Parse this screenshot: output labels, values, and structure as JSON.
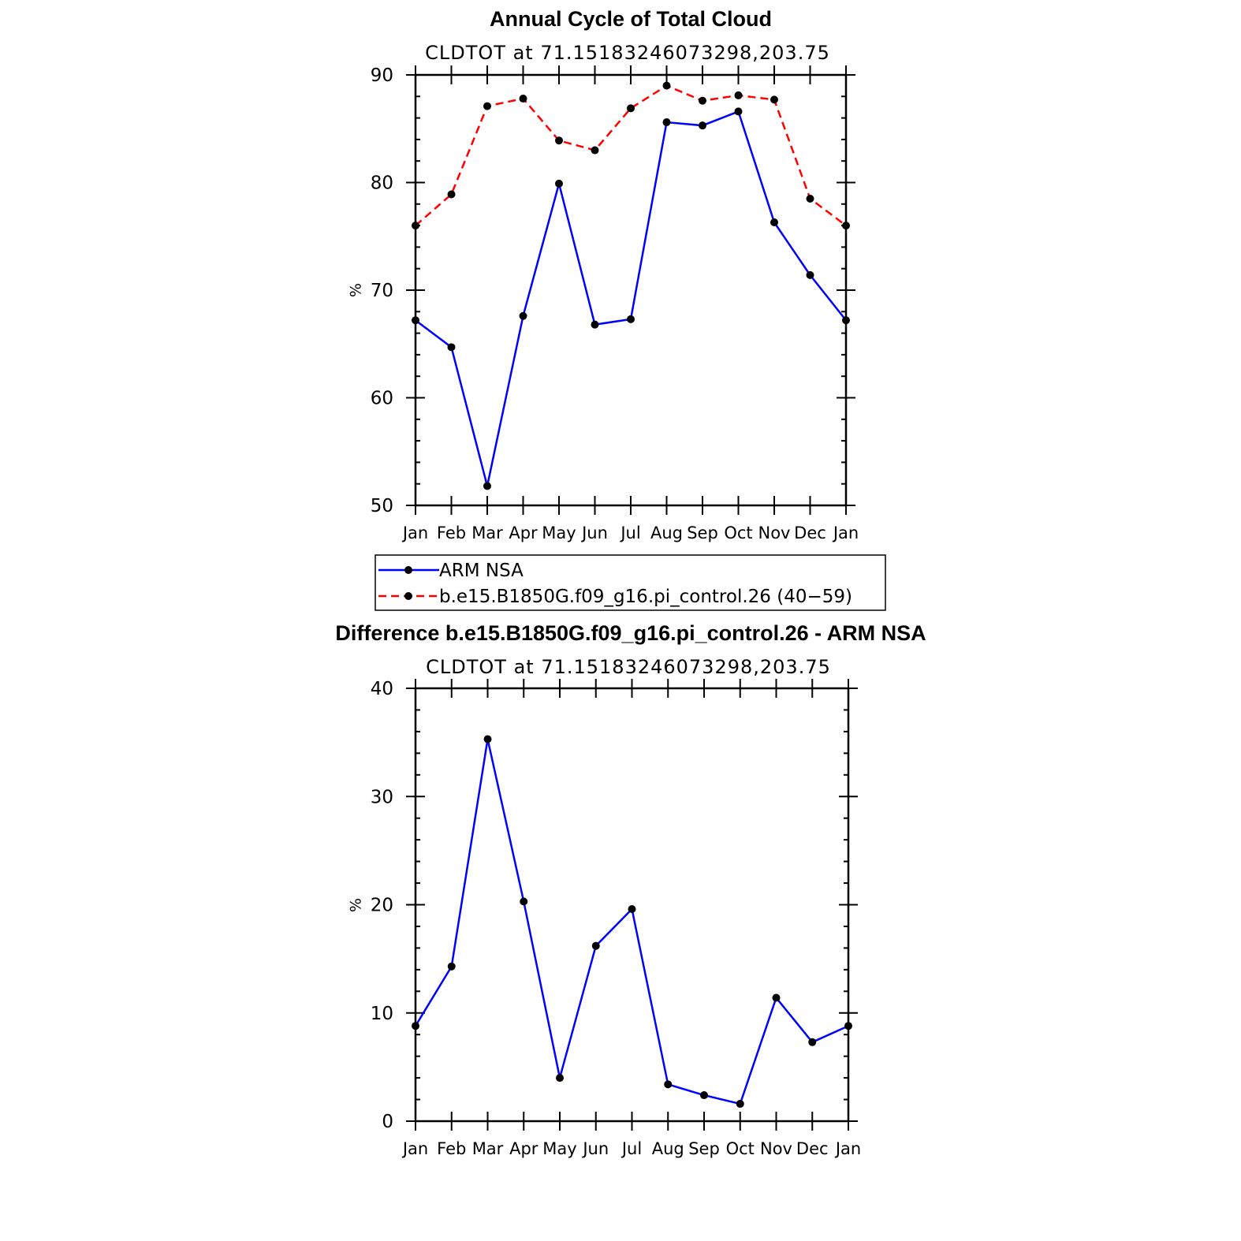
{
  "chart_data": [
    {
      "type": "line",
      "title": "Annual Cycle of Total Cloud",
      "subtitle": "CLDTOT at 71.15183246073298,203.75",
      "xlabel": "",
      "ylabel": "%",
      "categories": [
        "Jan",
        "Feb",
        "Mar",
        "Apr",
        "May",
        "Jun",
        "Jul",
        "Aug",
        "Sep",
        "Oct",
        "Nov",
        "Dec",
        "Jan"
      ],
      "ylim": [
        50,
        90
      ],
      "yticks": [
        50,
        60,
        70,
        80,
        90
      ],
      "grid": false,
      "series": [
        {
          "name": "ARM NSA",
          "color": "#0000ff",
          "dash": "solid",
          "values": [
            67.2,
            64.7,
            51.8,
            67.6,
            79.9,
            66.8,
            67.3,
            85.6,
            85.3,
            86.6,
            76.3,
            71.4,
            67.2
          ]
        },
        {
          "name": "b.e15.B1850G.f09_g16.pi_control.26 (40−59)",
          "color": "#ff0000",
          "dash": "dashed",
          "values": [
            76.0,
            78.9,
            87.1,
            87.8,
            83.9,
            83.0,
            86.9,
            89.0,
            87.6,
            88.1,
            87.7,
            78.5,
            76.0
          ]
        }
      ],
      "legend_position": "bottom"
    },
    {
      "type": "line",
      "title": "Difference b.e15.B1850G.f09_g16.pi_control.26 - ARM NSA",
      "subtitle": "CLDTOT at 71.15183246073298,203.75",
      "xlabel": "",
      "ylabel": "%",
      "categories": [
        "Jan",
        "Feb",
        "Mar",
        "Apr",
        "May",
        "Jun",
        "Jul",
        "Aug",
        "Sep",
        "Oct",
        "Nov",
        "Dec",
        "Jan"
      ],
      "ylim": [
        0,
        40
      ],
      "yticks": [
        0,
        10,
        20,
        30,
        40
      ],
      "grid": false,
      "series": [
        {
          "color": "#0000ff",
          "dash": "solid",
          "values": [
            8.8,
            14.3,
            35.3,
            20.3,
            4.0,
            16.2,
            19.6,
            3.4,
            2.4,
            1.6,
            11.4,
            7.3,
            8.8
          ]
        }
      ]
    }
  ]
}
